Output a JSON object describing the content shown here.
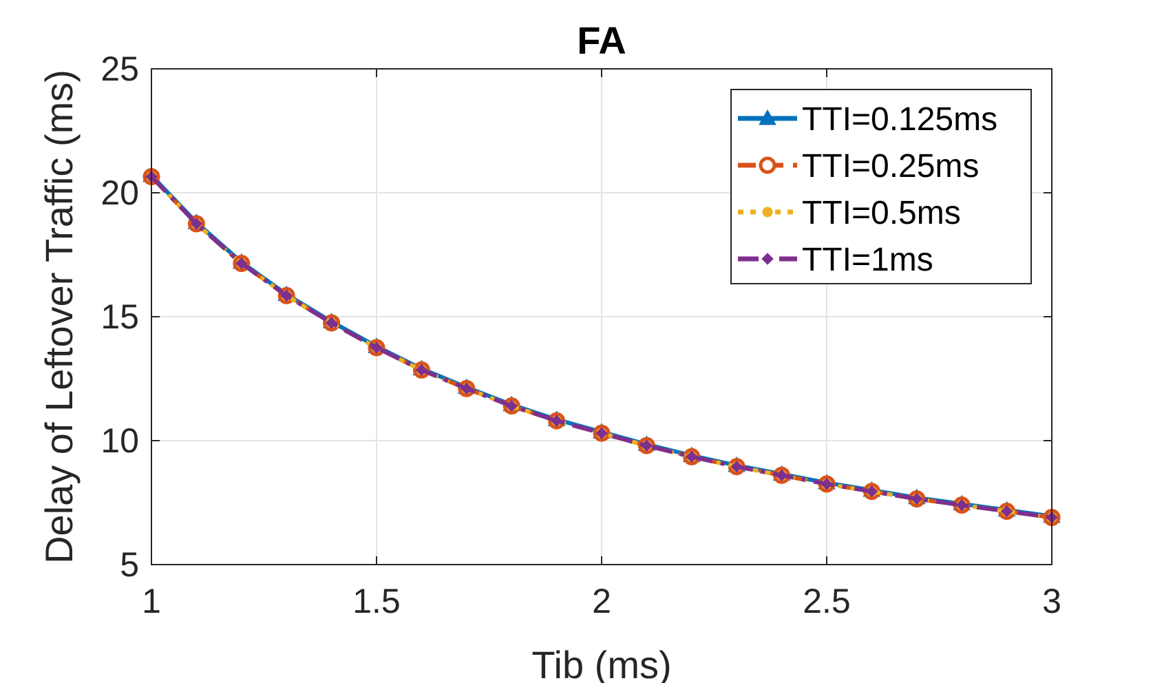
{
  "chart_data": {
    "type": "line",
    "title": "FA",
    "xlabel": "Tib (ms)",
    "ylabel": "Delay of Leftover Traffic (ms)",
    "xlim": [
      1,
      3
    ],
    "ylim": [
      5,
      25
    ],
    "xticks": [
      1,
      1.5,
      2,
      2.5,
      3
    ],
    "xtick_labels": [
      "1",
      "1.5",
      "2",
      "2.5",
      "3"
    ],
    "yticks": [
      5,
      10,
      15,
      20,
      25
    ],
    "ytick_labels": [
      "5",
      "10",
      "15",
      "20",
      "25"
    ],
    "grid": true,
    "legend_position": "top-right",
    "x": [
      1.0,
      1.1,
      1.2,
      1.3,
      1.4,
      1.5,
      1.6,
      1.7,
      1.8,
      1.9,
      2.0,
      2.1,
      2.2,
      2.3,
      2.4,
      2.5,
      2.6,
      2.7,
      2.8,
      2.9,
      3.0
    ],
    "series": [
      {
        "name": "TTI=0.125ms",
        "color": "#0072BD",
        "marker": "triangle",
        "line_style": "solid",
        "values": [
          20.7,
          18.8,
          17.2,
          15.9,
          14.8,
          13.8,
          12.9,
          12.15,
          11.45,
          10.85,
          10.35,
          9.85,
          9.4,
          9.0,
          8.65,
          8.3,
          8.0,
          7.7,
          7.45,
          7.2,
          6.95
        ]
      },
      {
        "name": "TTI=0.25ms",
        "color": "#D95319",
        "marker": "circle",
        "line_style": "dashed",
        "values": [
          20.65,
          18.75,
          17.15,
          15.85,
          14.75,
          13.75,
          12.85,
          12.1,
          11.4,
          10.8,
          10.3,
          9.8,
          9.35,
          8.95,
          8.6,
          8.25,
          7.95,
          7.65,
          7.4,
          7.15,
          6.9
        ]
      },
      {
        "name": "TTI=0.5ms",
        "color": "#EDB120",
        "marker": "dot",
        "line_style": "dotted",
        "values": [
          20.65,
          18.75,
          17.15,
          15.85,
          14.75,
          13.75,
          12.85,
          12.1,
          11.4,
          10.8,
          10.3,
          9.8,
          9.35,
          8.95,
          8.6,
          8.25,
          7.95,
          7.65,
          7.4,
          7.15,
          6.9
        ]
      },
      {
        "name": "TTI=1ms",
        "color": "#7E2F8E",
        "marker": "diamond",
        "line_style": "dash-dot",
        "values": [
          20.65,
          18.75,
          17.15,
          15.85,
          14.75,
          13.75,
          12.85,
          12.1,
          11.4,
          10.8,
          10.3,
          9.8,
          9.35,
          8.95,
          8.6,
          8.25,
          7.95,
          7.65,
          7.4,
          7.15,
          6.9
        ]
      }
    ]
  }
}
